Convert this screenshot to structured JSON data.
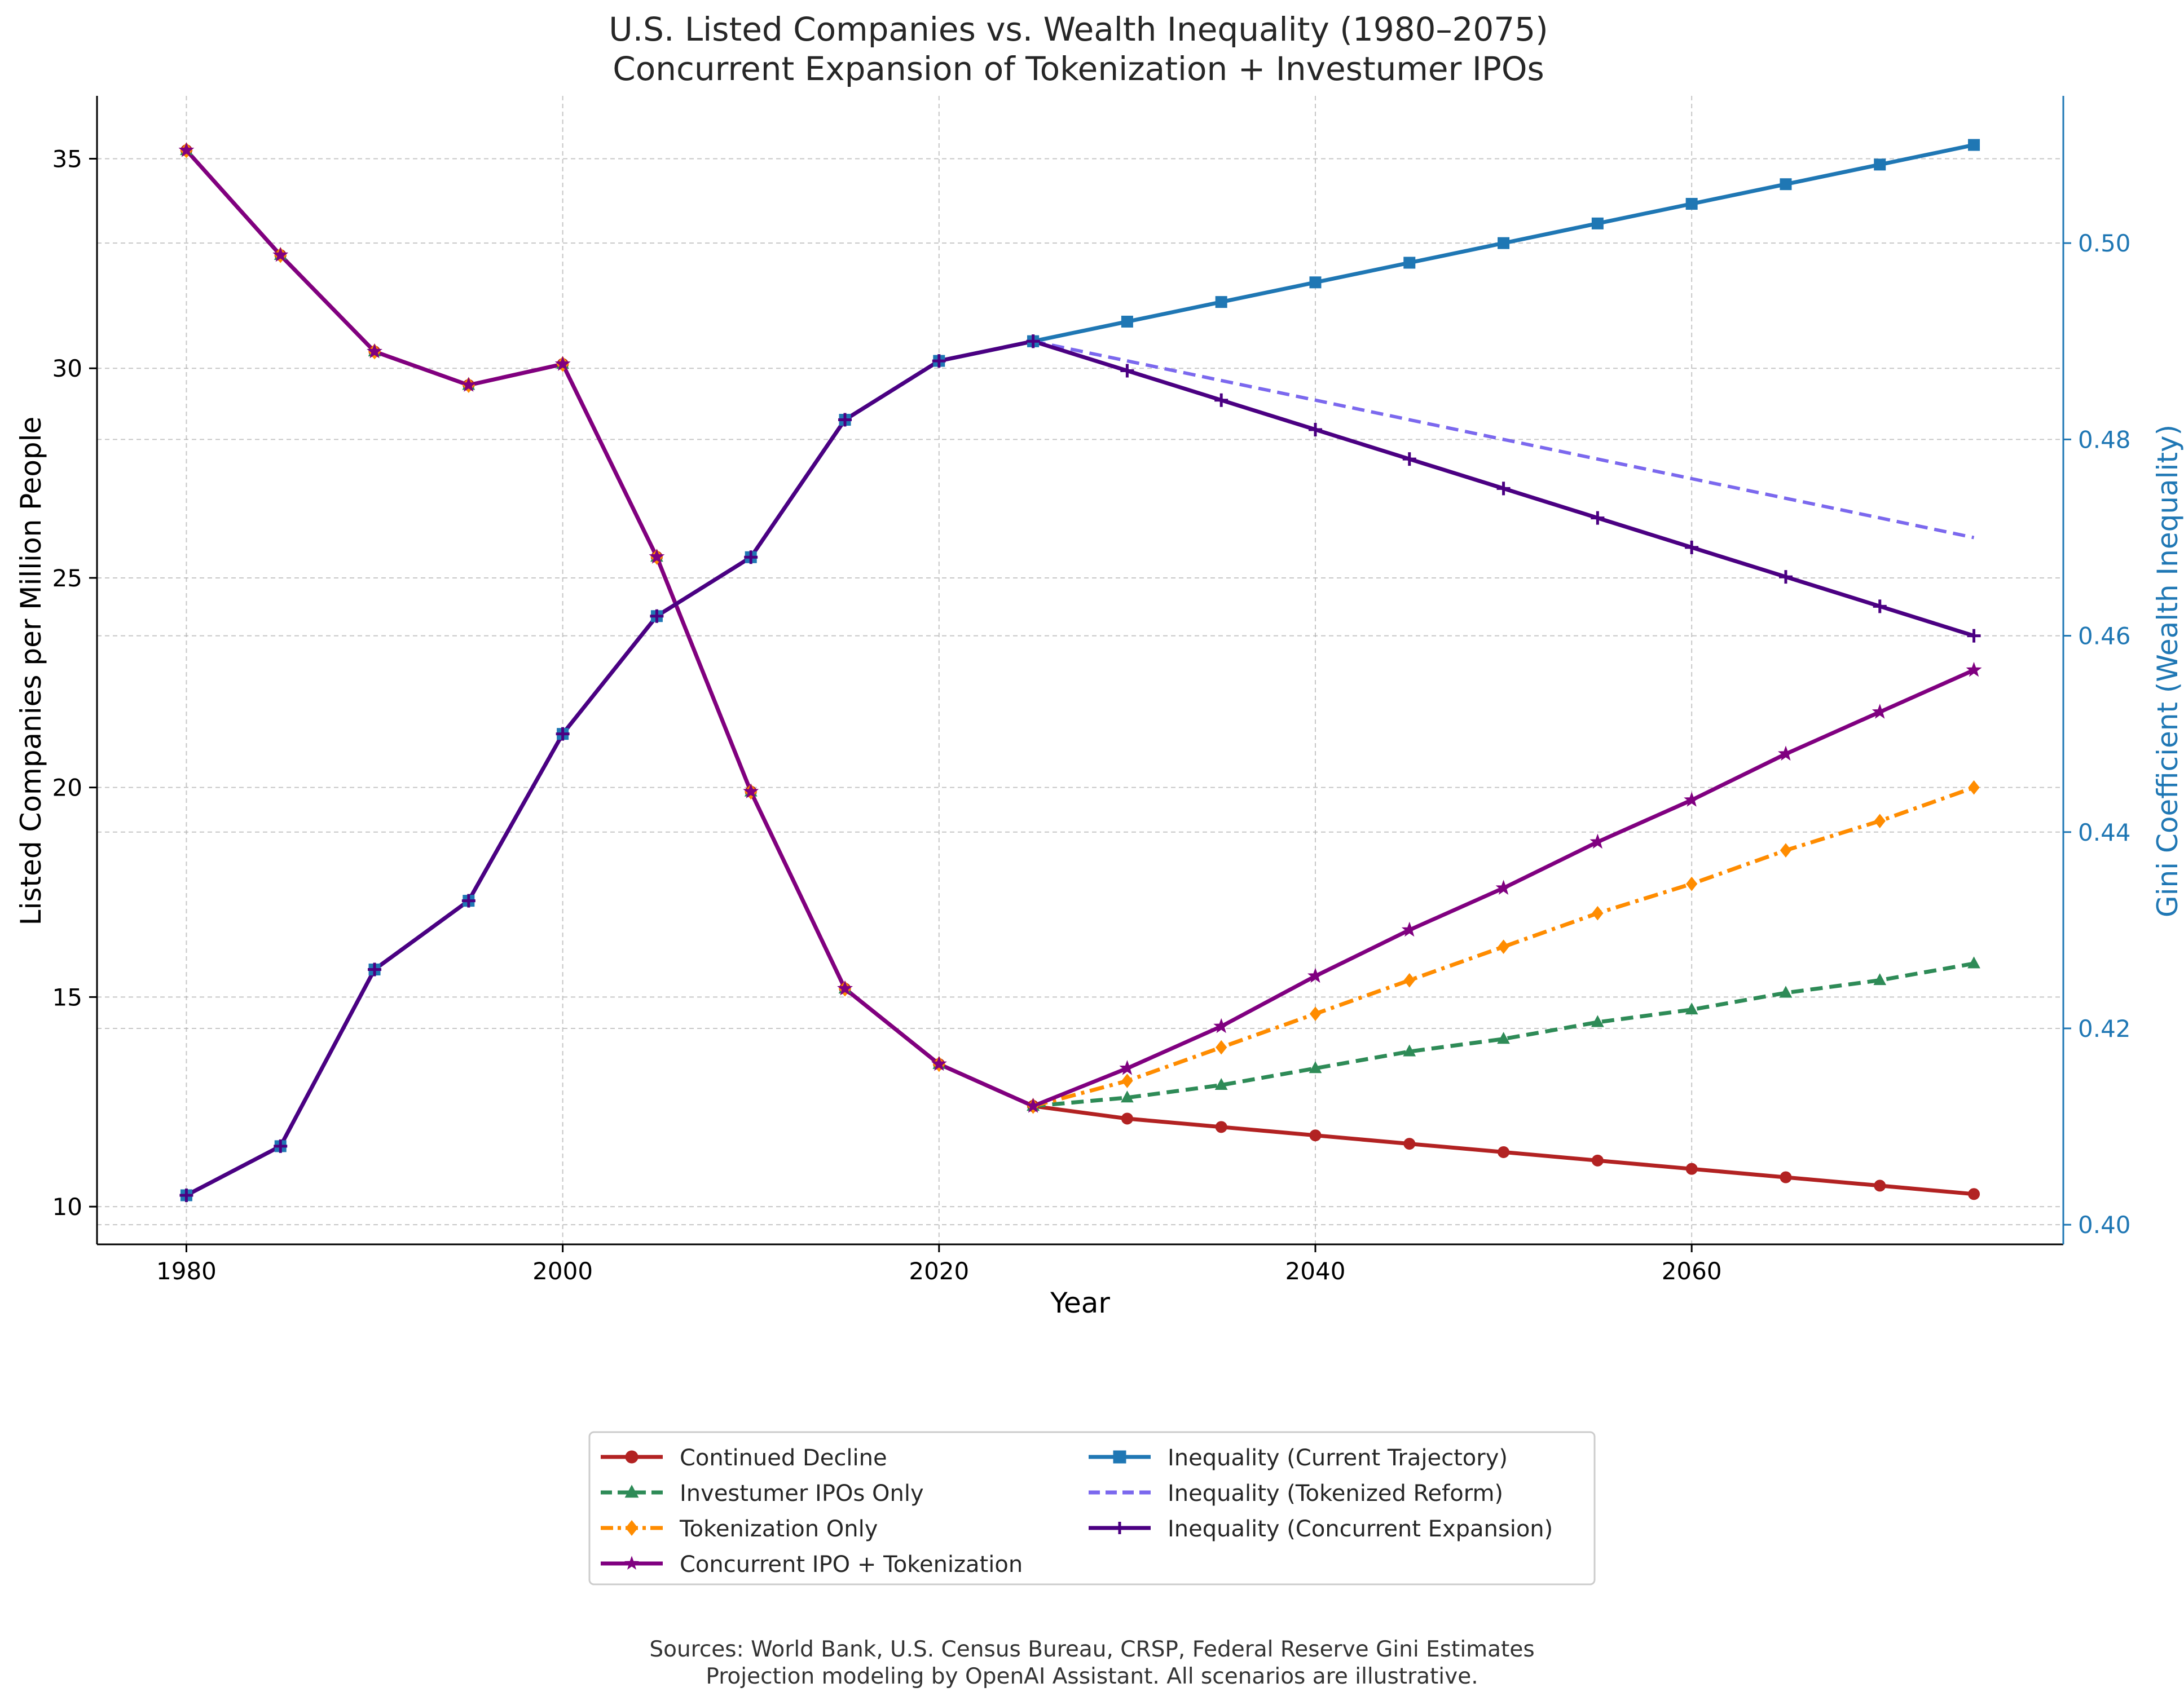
{
  "chart_data": {
    "type": "line",
    "title": "U.S. Listed Companies vs. Wealth Inequality (1980–2075)",
    "subtitle": "Concurrent Expansion of Tokenization + Investumer IPOs",
    "xlabel": "Year",
    "ylabel_left": "Listed Companies per Million People",
    "ylabel_right": "Gini Coefficient (Wealth Inequality)",
    "xlim": [
      1975.25,
      2079.75
    ],
    "ylim_left": [
      9.1,
      36.5
    ],
    "ylim_right": [
      0.398,
      0.515
    ],
    "x_ticks": [
      "1980",
      "2000",
      "2020",
      "2040",
      "2060"
    ],
    "x_tick_values": [
      1980,
      2000,
      2020,
      2040,
      2060
    ],
    "y_ticks_left": [
      "10",
      "15",
      "20",
      "25",
      "30",
      "35"
    ],
    "y_tick_values_left": [
      10,
      15,
      20,
      25,
      30,
      35
    ],
    "y_ticks_right": [
      "0.40",
      "0.42",
      "0.44",
      "0.46",
      "0.48",
      "0.50"
    ],
    "y_tick_values_right": [
      0.4,
      0.42,
      0.44,
      0.46,
      0.48,
      0.5
    ],
    "grid": true,
    "legend_position": "bottom-center",
    "colors": {
      "right_axis": "#1f77b4"
    },
    "historical": {
      "x": [
        1980,
        1985,
        1990,
        1995,
        2000,
        2005,
        2010,
        2015,
        2020,
        2025
      ],
      "companies": [
        35.2,
        32.7,
        30.4,
        29.6,
        30.1,
        25.5,
        19.9,
        15.2,
        13.4,
        12.4
      ],
      "gini": [
        0.403,
        0.408,
        0.426,
        0.433,
        0.45,
        0.462,
        0.468,
        0.482,
        0.488,
        0.49
      ]
    },
    "projection_x": [
      2025,
      2030,
      2035,
      2040,
      2045,
      2050,
      2055,
      2060,
      2065,
      2070,
      2075
    ],
    "series": [
      {
        "name": "Continued Decline",
        "axis": "left",
        "color": "#b22222",
        "dash": "solid",
        "marker": "circle",
        "values": [
          12.4,
          12.1,
          11.9,
          11.7,
          11.5,
          11.3,
          11.1,
          10.9,
          10.7,
          10.5,
          10.3
        ]
      },
      {
        "name": "Investumer IPOs Only",
        "axis": "left",
        "color": "#2e8b57",
        "dash": "dashed",
        "marker": "triangle",
        "values": [
          12.4,
          12.6,
          12.9,
          13.3,
          13.7,
          14.0,
          14.4,
          14.7,
          15.1,
          15.4,
          15.8
        ]
      },
      {
        "name": "Tokenization Only",
        "axis": "left",
        "color": "#ff8c00",
        "dash": "dashdot",
        "marker": "diamond",
        "values": [
          12.4,
          13.0,
          13.8,
          14.6,
          15.4,
          16.2,
          17.0,
          17.7,
          18.5,
          19.2,
          20.0
        ]
      },
      {
        "name": "Concurrent IPO + Tokenization",
        "axis": "left",
        "color": "#800080",
        "dash": "solid",
        "marker": "star",
        "values": [
          12.4,
          13.3,
          14.3,
          15.5,
          16.6,
          17.6,
          18.7,
          19.7,
          20.8,
          21.8,
          22.8
        ]
      },
      {
        "name": "Inequality (Current Trajectory)",
        "axis": "right",
        "color": "#1f77b4",
        "dash": "solid",
        "marker": "square",
        "values": [
          0.49,
          0.492,
          0.494,
          0.496,
          0.498,
          0.5,
          0.502,
          0.504,
          0.506,
          0.508,
          0.51
        ]
      },
      {
        "name": "Inequality (Tokenized Reform)",
        "axis": "right",
        "color": "#7b68ee",
        "dash": "dashed",
        "marker": "none",
        "values": [
          0.49,
          0.488,
          0.486,
          0.484,
          0.482,
          0.48,
          0.478,
          0.476,
          0.474,
          0.472,
          0.47
        ]
      },
      {
        "name": "Inequality (Concurrent Expansion)",
        "axis": "right",
        "color": "#4b0082",
        "dash": "solid",
        "marker": "plus",
        "values": [
          0.49,
          0.487,
          0.484,
          0.481,
          0.478,
          0.475,
          0.472,
          0.469,
          0.466,
          0.463,
          0.46
        ]
      }
    ],
    "sources": [
      "Sources: World Bank, U.S. Census Bureau, CRSP, Federal Reserve Gini Estimates",
      "Projection modeling by OpenAI Assistant. All scenarios are illustrative."
    ]
  }
}
